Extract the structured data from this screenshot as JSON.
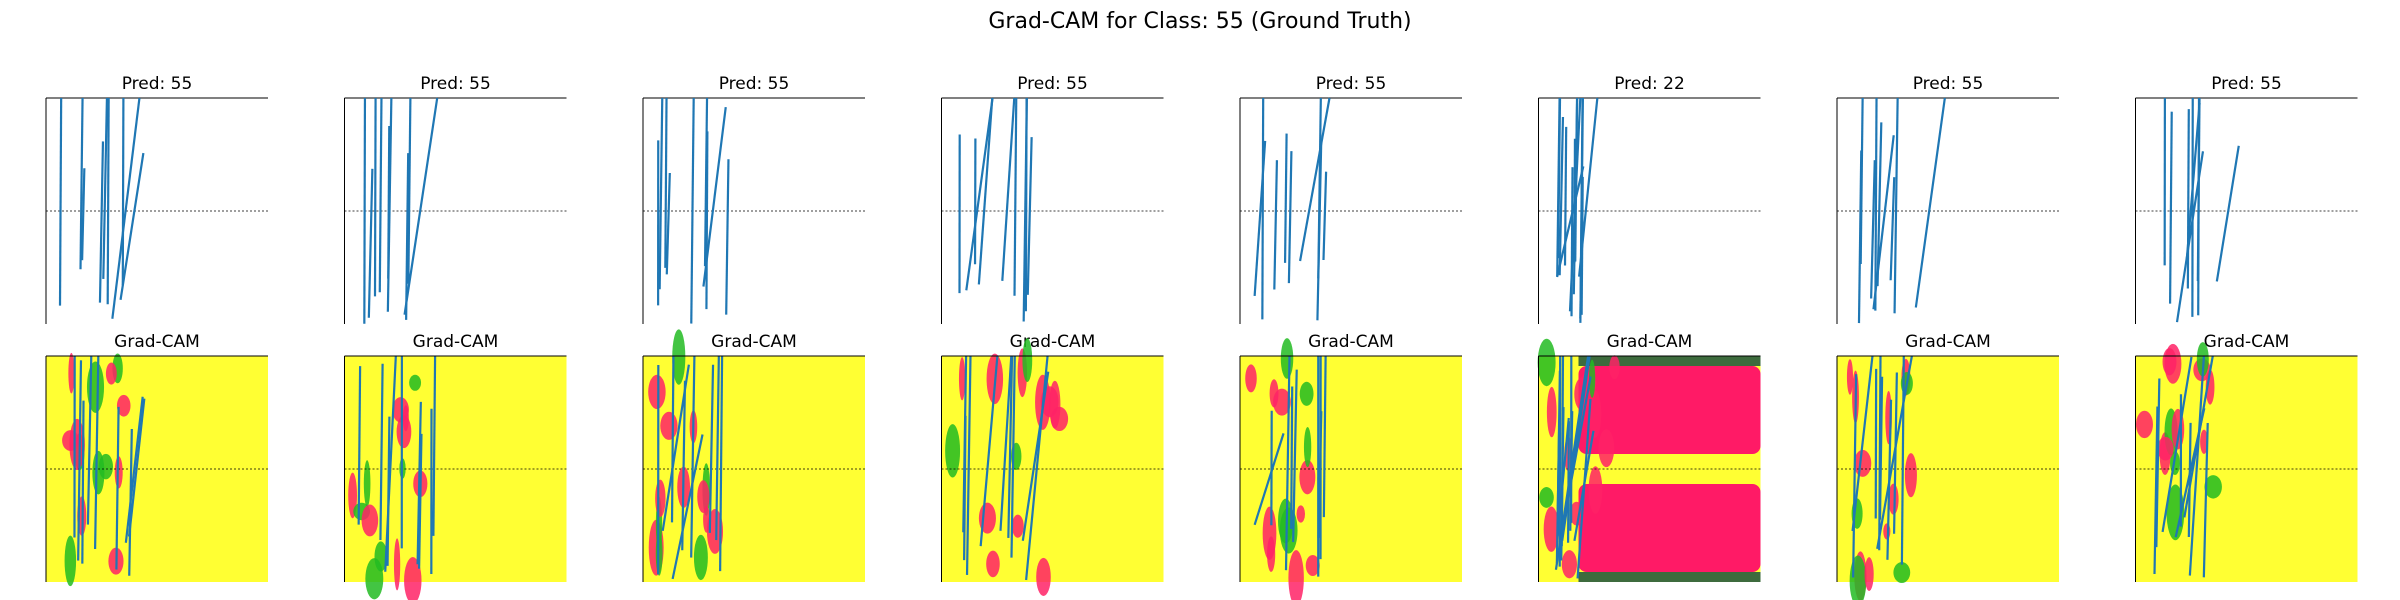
{
  "title": "Grad-CAM for Class: 55 (Ground Truth)",
  "panels": [
    {
      "pred": "Pred: 55",
      "cam": "Grad-CAM"
    },
    {
      "pred": "Pred: 55",
      "cam": "Grad-CAM"
    },
    {
      "pred": "Pred: 55",
      "cam": "Grad-CAM"
    },
    {
      "pred": "Pred: 55",
      "cam": "Grad-CAM"
    },
    {
      "pred": "Pred: 55",
      "cam": "Grad-CAM"
    },
    {
      "pred": "Pred: 22",
      "cam": "Grad-CAM"
    },
    {
      "pred": "Pred: 55",
      "cam": "Grad-CAM"
    },
    {
      "pred": "Pred: 55",
      "cam": "Grad-CAM"
    }
  ]
}
